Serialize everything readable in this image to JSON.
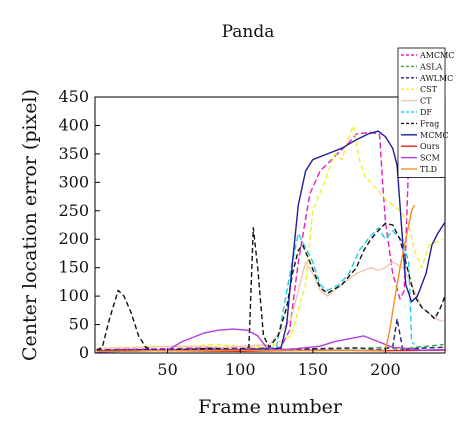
{
  "chart_data": {
    "type": "line",
    "title": "Panda",
    "xlabel": "Frame number",
    "ylabel": "Center location error (pixel)",
    "xlim": [
      0,
      241
    ],
    "ylim": [
      0,
      450
    ],
    "xticks": [
      50,
      100,
      150,
      200
    ],
    "yticks": [
      0,
      50,
      100,
      150,
      200,
      250,
      300,
      350,
      400,
      450
    ],
    "legend_position": "top-right",
    "series": [
      {
        "name": "AMCMC",
        "color": "#e020c0",
        "dash": "6,3",
        "points": [
          [
            1,
            6
          ],
          [
            40,
            7
          ],
          [
            80,
            9
          ],
          [
            110,
            8
          ],
          [
            128,
            10
          ],
          [
            134,
            40
          ],
          [
            140,
            160
          ],
          [
            148,
            280
          ],
          [
            155,
            320
          ],
          [
            165,
            345
          ],
          [
            175,
            370
          ],
          [
            180,
            385
          ],
          [
            190,
            388
          ],
          [
            196,
            384
          ],
          [
            198,
            300
          ],
          [
            200,
            230
          ],
          [
            205,
            140
          ],
          [
            210,
            95
          ],
          [
            213,
            110
          ],
          [
            216,
            340
          ],
          [
            220,
            350
          ]
        ]
      },
      {
        "name": "ASLA",
        "color": "#30b030",
        "dash": "5,3",
        "points": [
          [
            1,
            4
          ],
          [
            30,
            5
          ],
          [
            60,
            6
          ],
          [
            90,
            5
          ],
          [
            120,
            6
          ],
          [
            150,
            7
          ],
          [
            180,
            8
          ],
          [
            200,
            10
          ],
          [
            210,
            6
          ],
          [
            220,
            10
          ],
          [
            230,
            12
          ],
          [
            240,
            15
          ]
        ]
      },
      {
        "name": "AWLMC",
        "color": "#1a237e",
        "dash": "5,3",
        "points": [
          [
            1,
            5
          ],
          [
            40,
            6
          ],
          [
            80,
            7
          ],
          [
            100,
            6
          ],
          [
            110,
            5
          ],
          [
            128,
            6
          ],
          [
            140,
            7
          ],
          [
            160,
            8
          ],
          [
            180,
            9
          ],
          [
            195,
            6
          ],
          [
            205,
            10
          ],
          [
            208,
            60
          ],
          [
            212,
            5
          ],
          [
            220,
            8
          ],
          [
            240,
            10
          ]
        ]
      },
      {
        "name": "CST",
        "color": "#f0f030",
        "dash": "5,3",
        "points": [
          [
            1,
            8
          ],
          [
            20,
            9
          ],
          [
            40,
            12
          ],
          [
            60,
            10
          ],
          [
            80,
            15
          ],
          [
            100,
            12
          ],
          [
            120,
            10
          ],
          [
            135,
            30
          ],
          [
            145,
            120
          ],
          [
            150,
            250
          ],
          [
            158,
            300
          ],
          [
            165,
            350
          ],
          [
            170,
            340
          ],
          [
            175,
            380
          ],
          [
            178,
            400
          ],
          [
            182,
            340
          ],
          [
            186,
            310
          ],
          [
            190,
            300
          ],
          [
            195,
            285
          ],
          [
            200,
            270
          ],
          [
            210,
            250
          ],
          [
            215,
            235
          ],
          [
            220,
            180
          ],
          [
            225,
            150
          ],
          [
            230,
            190
          ],
          [
            235,
            195
          ],
          [
            240,
            200
          ]
        ]
      },
      {
        "name": "CT",
        "color": "#f0c8b0",
        "dash": "none",
        "points": [
          [
            1,
            8
          ],
          [
            30,
            10
          ],
          [
            60,
            12
          ],
          [
            90,
            10
          ],
          [
            120,
            15
          ],
          [
            135,
            60
          ],
          [
            140,
            110
          ],
          [
            145,
            160
          ],
          [
            150,
            140
          ],
          [
            155,
            110
          ],
          [
            160,
            100
          ],
          [
            170,
            120
          ],
          [
            180,
            140
          ],
          [
            190,
            150
          ],
          [
            195,
            145
          ],
          [
            200,
            150
          ],
          [
            205,
            160
          ],
          [
            212,
            150
          ],
          [
            218,
            120
          ],
          [
            225,
            80
          ],
          [
            235,
            60
          ],
          [
            240,
            55
          ]
        ]
      },
      {
        "name": "DF",
        "color": "#20d0e0",
        "dash": "6,3",
        "points": [
          [
            1,
            3
          ],
          [
            40,
            4
          ],
          [
            80,
            5
          ],
          [
            110,
            6
          ],
          [
            125,
            10
          ],
          [
            130,
            80
          ],
          [
            135,
            150
          ],
          [
            140,
            210
          ],
          [
            145,
            185
          ],
          [
            150,
            160
          ],
          [
            155,
            120
          ],
          [
            160,
            110
          ],
          [
            168,
            120
          ],
          [
            175,
            140
          ],
          [
            182,
            180
          ],
          [
            188,
            200
          ],
          [
            195,
            220
          ],
          [
            200,
            200
          ],
          [
            205,
            215
          ],
          [
            212,
            195
          ],
          [
            216,
            160
          ],
          [
            218,
            20
          ],
          [
            220,
            15
          ]
        ]
      },
      {
        "name": "Frag",
        "color": "#101010",
        "dash": "5,3",
        "points": [
          [
            1,
            5
          ],
          [
            5,
            10
          ],
          [
            10,
            60
          ],
          [
            16,
            110
          ],
          [
            20,
            100
          ],
          [
            25,
            70
          ],
          [
            30,
            30
          ],
          [
            35,
            10
          ],
          [
            40,
            5
          ],
          [
            60,
            6
          ],
          [
            80,
            8
          ],
          [
            100,
            6
          ],
          [
            106,
            10
          ],
          [
            109,
            220
          ],
          [
            112,
            150
          ],
          [
            116,
            30
          ],
          [
            120,
            10
          ],
          [
            126,
            30
          ],
          [
            132,
            80
          ],
          [
            136,
            140
          ],
          [
            140,
            180
          ],
          [
            143,
            190
          ],
          [
            148,
            160
          ],
          [
            155,
            115
          ],
          [
            160,
            105
          ],
          [
            170,
            120
          ],
          [
            180,
            150
          ],
          [
            185,
            180
          ],
          [
            190,
            200
          ],
          [
            195,
            215
          ],
          [
            200,
            228
          ],
          [
            205,
            225
          ],
          [
            210,
            200
          ],
          [
            215,
            150
          ],
          [
            220,
            100
          ],
          [
            225,
            80
          ],
          [
            230,
            70
          ],
          [
            234,
            60
          ],
          [
            238,
            80
          ],
          [
            241,
            100
          ]
        ]
      },
      {
        "name": "MCMC",
        "color": "#1e1e9a",
        "dash": "none",
        "points": [
          [
            1,
            4
          ],
          [
            60,
            5
          ],
          [
            100,
            6
          ],
          [
            128,
            8
          ],
          [
            132,
            50
          ],
          [
            136,
            160
          ],
          [
            140,
            260
          ],
          [
            145,
            320
          ],
          [
            150,
            340
          ],
          [
            160,
            350
          ],
          [
            170,
            360
          ],
          [
            180,
            375
          ],
          [
            188,
            385
          ],
          [
            195,
            390
          ],
          [
            200,
            380
          ],
          [
            205,
            360
          ],
          [
            208,
            330
          ],
          [
            210,
            260
          ],
          [
            214,
            120
          ],
          [
            218,
            90
          ],
          [
            222,
            100
          ],
          [
            228,
            140
          ],
          [
            232,
            190
          ],
          [
            236,
            210
          ],
          [
            241,
            230
          ]
        ]
      },
      {
        "name": "Ours",
        "color": "#e02020",
        "dash": "none",
        "points": [
          [
            1,
            3
          ],
          [
            50,
            4
          ],
          [
            100,
            3
          ],
          [
            150,
            5
          ],
          [
            200,
            4
          ],
          [
            241,
            5
          ]
        ]
      },
      {
        "name": "SCM",
        "color": "#b040e0",
        "dash": "none",
        "points": [
          [
            1,
            2
          ],
          [
            50,
            5
          ],
          [
            60,
            20
          ],
          [
            75,
            35
          ],
          [
            85,
            40
          ],
          [
            95,
            42
          ],
          [
            105,
            40
          ],
          [
            112,
            30
          ],
          [
            118,
            10
          ],
          [
            125,
            5
          ],
          [
            140,
            8
          ],
          [
            155,
            12
          ],
          [
            165,
            20
          ],
          [
            175,
            25
          ],
          [
            185,
            30
          ],
          [
            195,
            20
          ],
          [
            205,
            10
          ],
          [
            215,
            8
          ],
          [
            225,
            5
          ],
          [
            241,
            6
          ]
        ]
      },
      {
        "name": "TLD",
        "color": "#f09020",
        "dash": "none",
        "points": [
          [
            1,
            3
          ],
          [
            50,
            4
          ],
          [
            100,
            5
          ],
          [
            150,
            4
          ],
          [
            200,
            5
          ],
          [
            203,
            40
          ],
          [
            206,
            90
          ],
          [
            210,
            150
          ],
          [
            214,
            200
          ],
          [
            218,
            250
          ],
          [
            220,
            260
          ]
        ]
      }
    ]
  }
}
